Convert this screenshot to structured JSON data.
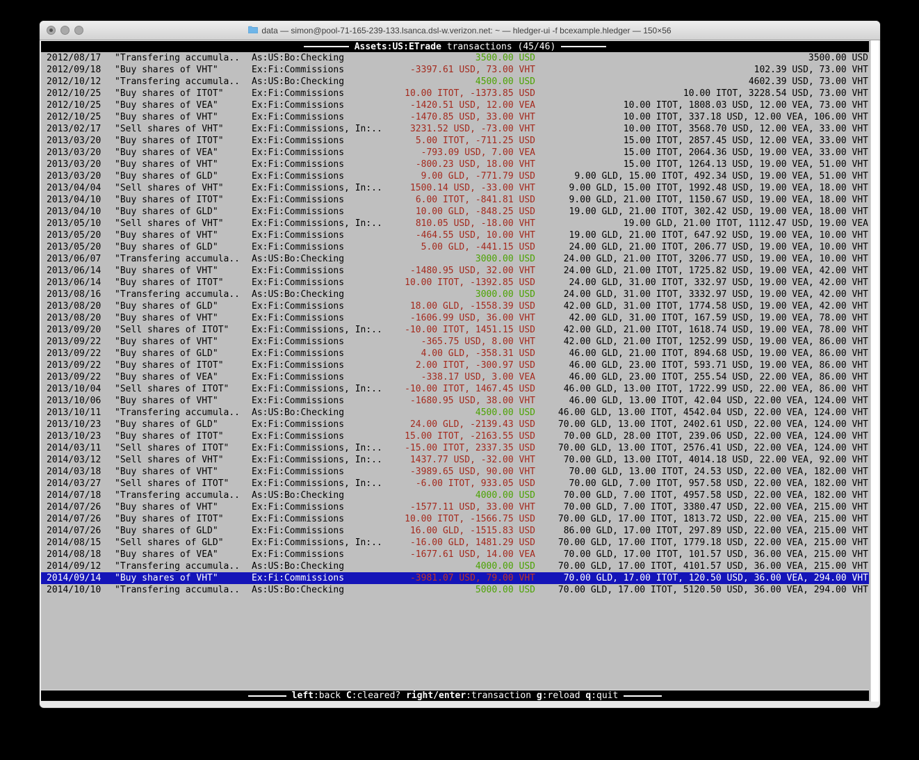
{
  "window": {
    "title": "data — simon@pool-71-165-239-133.lsanca.dsl-w.verizon.net: ~ — hledger-ui -f bcexample.hledger — 150×56"
  },
  "header": {
    "account_bold": "Assets:US:ETrade",
    "rest": " transactions (45/46)"
  },
  "footer": {
    "keys": [
      {
        "key": "left",
        "action": "back"
      },
      {
        "key": "C",
        "action": "cleared?"
      },
      {
        "key": "right/enter",
        "action": "transaction"
      },
      {
        "key": "g",
        "action": "reload"
      },
      {
        "key": "q",
        "action": "quit"
      }
    ]
  },
  "colors": {
    "terminal_bg": "#bfbfbf",
    "bar_bg": "#000000",
    "bar_fg": "#ffffff",
    "amount_negative": "#a42a1e",
    "amount_positive": "#4ca303",
    "selection_bg": "#1414b8",
    "selection_fg": "#ffffff"
  },
  "register": {
    "selected_index": 44,
    "columns": [
      "date",
      "description",
      "other_accounts",
      "change",
      "balance"
    ],
    "rows": [
      [
        "2012/08/17",
        "\"Transfering accumula..",
        "As:US:Bo:Checking",
        "3500.00 USD",
        "green",
        "3500.00 USD"
      ],
      [
        "2012/09/18",
        "\"Buy shares of VHT\"",
        "Ex:Fi:Commissions",
        "-3397.61 USD, 73.00 VHT",
        "red",
        "102.39 USD, 73.00 VHT"
      ],
      [
        "2012/10/12",
        "\"Transfering accumula..",
        "As:US:Bo:Checking",
        "4500.00 USD",
        "green",
        "4602.39 USD, 73.00 VHT"
      ],
      [
        "2012/10/25",
        "\"Buy shares of ITOT\"",
        "Ex:Fi:Commissions",
        "10.00 ITOT, -1373.85 USD",
        "red",
        "10.00 ITOT, 3228.54 USD, 73.00 VHT"
      ],
      [
        "2012/10/25",
        "\"Buy shares of VEA\"",
        "Ex:Fi:Commissions",
        "-1420.51 USD, 12.00 VEA",
        "red",
        "10.00 ITOT, 1808.03 USD, 12.00 VEA, 73.00 VHT"
      ],
      [
        "2012/10/25",
        "\"Buy shares of VHT\"",
        "Ex:Fi:Commissions",
        "-1470.85 USD, 33.00 VHT",
        "red",
        "10.00 ITOT, 337.18 USD, 12.00 VEA, 106.00 VHT"
      ],
      [
        "2013/02/17",
        "\"Sell shares of VHT\"",
        "Ex:Fi:Commissions, In:..",
        "3231.52 USD, -73.00 VHT",
        "red",
        "10.00 ITOT, 3568.70 USD, 12.00 VEA, 33.00 VHT"
      ],
      [
        "2013/03/20",
        "\"Buy shares of ITOT\"",
        "Ex:Fi:Commissions",
        "5.00 ITOT, -711.25 USD",
        "red",
        "15.00 ITOT, 2857.45 USD, 12.00 VEA, 33.00 VHT"
      ],
      [
        "2013/03/20",
        "\"Buy shares of VEA\"",
        "Ex:Fi:Commissions",
        "-793.09 USD, 7.00 VEA",
        "red",
        "15.00 ITOT, 2064.36 USD, 19.00 VEA, 33.00 VHT"
      ],
      [
        "2013/03/20",
        "\"Buy shares of VHT\"",
        "Ex:Fi:Commissions",
        "-800.23 USD, 18.00 VHT",
        "red",
        "15.00 ITOT, 1264.13 USD, 19.00 VEA, 51.00 VHT"
      ],
      [
        "2013/03/20",
        "\"Buy shares of GLD\"",
        "Ex:Fi:Commissions",
        "9.00 GLD, -771.79 USD",
        "red",
        "9.00 GLD, 15.00 ITOT, 492.34 USD, 19.00 VEA, 51.00 VHT"
      ],
      [
        "2013/04/04",
        "\"Sell shares of VHT\"",
        "Ex:Fi:Commissions, In:..",
        "1500.14 USD, -33.00 VHT",
        "red",
        "9.00 GLD, 15.00 ITOT, 1992.48 USD, 19.00 VEA, 18.00 VHT"
      ],
      [
        "2013/04/10",
        "\"Buy shares of ITOT\"",
        "Ex:Fi:Commissions",
        "6.00 ITOT, -841.81 USD",
        "red",
        "9.00 GLD, 21.00 ITOT, 1150.67 USD, 19.00 VEA, 18.00 VHT"
      ],
      [
        "2013/04/10",
        "\"Buy shares of GLD\"",
        "Ex:Fi:Commissions",
        "10.00 GLD, -848.25 USD",
        "red",
        "19.00 GLD, 21.00 ITOT, 302.42 USD, 19.00 VEA, 18.00 VHT"
      ],
      [
        "2013/05/10",
        "\"Sell shares of VHT\"",
        "Ex:Fi:Commissions, In:..",
        "810.05 USD, -18.00 VHT",
        "red",
        "19.00 GLD, 21.00 ITOT, 1112.47 USD, 19.00 VEA"
      ],
      [
        "2013/05/20",
        "\"Buy shares of VHT\"",
        "Ex:Fi:Commissions",
        "-464.55 USD, 10.00 VHT",
        "red",
        "19.00 GLD, 21.00 ITOT, 647.92 USD, 19.00 VEA, 10.00 VHT"
      ],
      [
        "2013/05/20",
        "\"Buy shares of GLD\"",
        "Ex:Fi:Commissions",
        "5.00 GLD, -441.15 USD",
        "red",
        "24.00 GLD, 21.00 ITOT, 206.77 USD, 19.00 VEA, 10.00 VHT"
      ],
      [
        "2013/06/07",
        "\"Transfering accumula..",
        "As:US:Bo:Checking",
        "3000.00 USD",
        "green",
        "24.00 GLD, 21.00 ITOT, 3206.77 USD, 19.00 VEA, 10.00 VHT"
      ],
      [
        "2013/06/14",
        "\"Buy shares of VHT\"",
        "Ex:Fi:Commissions",
        "-1480.95 USD, 32.00 VHT",
        "red",
        "24.00 GLD, 21.00 ITOT, 1725.82 USD, 19.00 VEA, 42.00 VHT"
      ],
      [
        "2013/06/14",
        "\"Buy shares of ITOT\"",
        "Ex:Fi:Commissions",
        "10.00 ITOT, -1392.85 USD",
        "red",
        "24.00 GLD, 31.00 ITOT, 332.97 USD, 19.00 VEA, 42.00 VHT"
      ],
      [
        "2013/08/16",
        "\"Transfering accumula..",
        "As:US:Bo:Checking",
        "3000.00 USD",
        "green",
        "24.00 GLD, 31.00 ITOT, 3332.97 USD, 19.00 VEA, 42.00 VHT"
      ],
      [
        "2013/08/20",
        "\"Buy shares of GLD\"",
        "Ex:Fi:Commissions",
        "18.00 GLD, -1558.39 USD",
        "red",
        "42.00 GLD, 31.00 ITOT, 1774.58 USD, 19.00 VEA, 42.00 VHT"
      ],
      [
        "2013/08/20",
        "\"Buy shares of VHT\"",
        "Ex:Fi:Commissions",
        "-1606.99 USD, 36.00 VHT",
        "red",
        "42.00 GLD, 31.00 ITOT, 167.59 USD, 19.00 VEA, 78.00 VHT"
      ],
      [
        "2013/09/20",
        "\"Sell shares of ITOT\"",
        "Ex:Fi:Commissions, In:..",
        "-10.00 ITOT, 1451.15 USD",
        "red",
        "42.00 GLD, 21.00 ITOT, 1618.74 USD, 19.00 VEA, 78.00 VHT"
      ],
      [
        "2013/09/22",
        "\"Buy shares of VHT\"",
        "Ex:Fi:Commissions",
        "-365.75 USD, 8.00 VHT",
        "red",
        "42.00 GLD, 21.00 ITOT, 1252.99 USD, 19.00 VEA, 86.00 VHT"
      ],
      [
        "2013/09/22",
        "\"Buy shares of GLD\"",
        "Ex:Fi:Commissions",
        "4.00 GLD, -358.31 USD",
        "red",
        "46.00 GLD, 21.00 ITOT, 894.68 USD, 19.00 VEA, 86.00 VHT"
      ],
      [
        "2013/09/22",
        "\"Buy shares of ITOT\"",
        "Ex:Fi:Commissions",
        "2.00 ITOT, -300.97 USD",
        "red",
        "46.00 GLD, 23.00 ITOT, 593.71 USD, 19.00 VEA, 86.00 VHT"
      ],
      [
        "2013/09/22",
        "\"Buy shares of VEA\"",
        "Ex:Fi:Commissions",
        "-338.17 USD, 3.00 VEA",
        "red",
        "46.00 GLD, 23.00 ITOT, 255.54 USD, 22.00 VEA, 86.00 VHT"
      ],
      [
        "2013/10/04",
        "\"Sell shares of ITOT\"",
        "Ex:Fi:Commissions, In:..",
        "-10.00 ITOT, 1467.45 USD",
        "red",
        "46.00 GLD, 13.00 ITOT, 1722.99 USD, 22.00 VEA, 86.00 VHT"
      ],
      [
        "2013/10/06",
        "\"Buy shares of VHT\"",
        "Ex:Fi:Commissions",
        "-1680.95 USD, 38.00 VHT",
        "red",
        "46.00 GLD, 13.00 ITOT, 42.04 USD, 22.00 VEA, 124.00 VHT"
      ],
      [
        "2013/10/11",
        "\"Transfering accumula..",
        "As:US:Bo:Checking",
        "4500.00 USD",
        "green",
        "46.00 GLD, 13.00 ITOT, 4542.04 USD, 22.00 VEA, 124.00 VHT"
      ],
      [
        "2013/10/23",
        "\"Buy shares of GLD\"",
        "Ex:Fi:Commissions",
        "24.00 GLD, -2139.43 USD",
        "red",
        "70.00 GLD, 13.00 ITOT, 2402.61 USD, 22.00 VEA, 124.00 VHT"
      ],
      [
        "2013/10/23",
        "\"Buy shares of ITOT\"",
        "Ex:Fi:Commissions",
        "15.00 ITOT, -2163.55 USD",
        "red",
        "70.00 GLD, 28.00 ITOT, 239.06 USD, 22.00 VEA, 124.00 VHT"
      ],
      [
        "2014/03/11",
        "\"Sell shares of ITOT\"",
        "Ex:Fi:Commissions, In:..",
        "-15.00 ITOT, 2337.35 USD",
        "red",
        "70.00 GLD, 13.00 ITOT, 2576.41 USD, 22.00 VEA, 124.00 VHT"
      ],
      [
        "2014/03/12",
        "\"Sell shares of VHT\"",
        "Ex:Fi:Commissions, In:..",
        "1437.77 USD, -32.00 VHT",
        "red",
        "70.00 GLD, 13.00 ITOT, 4014.18 USD, 22.00 VEA, 92.00 VHT"
      ],
      [
        "2014/03/18",
        "\"Buy shares of VHT\"",
        "Ex:Fi:Commissions",
        "-3989.65 USD, 90.00 VHT",
        "red",
        "70.00 GLD, 13.00 ITOT, 24.53 USD, 22.00 VEA, 182.00 VHT"
      ],
      [
        "2014/03/27",
        "\"Sell shares of ITOT\"",
        "Ex:Fi:Commissions, In:..",
        "-6.00 ITOT, 933.05 USD",
        "red",
        "70.00 GLD, 7.00 ITOT, 957.58 USD, 22.00 VEA, 182.00 VHT"
      ],
      [
        "2014/07/18",
        "\"Transfering accumula..",
        "As:US:Bo:Checking",
        "4000.00 USD",
        "green",
        "70.00 GLD, 7.00 ITOT, 4957.58 USD, 22.00 VEA, 182.00 VHT"
      ],
      [
        "2014/07/26",
        "\"Buy shares of VHT\"",
        "Ex:Fi:Commissions",
        "-1577.11 USD, 33.00 VHT",
        "red",
        "70.00 GLD, 7.00 ITOT, 3380.47 USD, 22.00 VEA, 215.00 VHT"
      ],
      [
        "2014/07/26",
        "\"Buy shares of ITOT\"",
        "Ex:Fi:Commissions",
        "10.00 ITOT, -1566.75 USD",
        "red",
        "70.00 GLD, 17.00 ITOT, 1813.72 USD, 22.00 VEA, 215.00 VHT"
      ],
      [
        "2014/07/26",
        "\"Buy shares of GLD\"",
        "Ex:Fi:Commissions",
        "16.00 GLD, -1515.83 USD",
        "red",
        "86.00 GLD, 17.00 ITOT, 297.89 USD, 22.00 VEA, 215.00 VHT"
      ],
      [
        "2014/08/15",
        "\"Sell shares of GLD\"",
        "Ex:Fi:Commissions, In:..",
        "-16.00 GLD, 1481.29 USD",
        "red",
        "70.00 GLD, 17.00 ITOT, 1779.18 USD, 22.00 VEA, 215.00 VHT"
      ],
      [
        "2014/08/18",
        "\"Buy shares of VEA\"",
        "Ex:Fi:Commissions",
        "-1677.61 USD, 14.00 VEA",
        "red",
        "70.00 GLD, 17.00 ITOT, 101.57 USD, 36.00 VEA, 215.00 VHT"
      ],
      [
        "2014/09/12",
        "\"Transfering accumula..",
        "As:US:Bo:Checking",
        "4000.00 USD",
        "green",
        "70.00 GLD, 17.00 ITOT, 4101.57 USD, 36.00 VEA, 215.00 VHT"
      ],
      [
        "2014/09/14",
        "\"Buy shares of VHT\"",
        "Ex:Fi:Commissions",
        "-3981.07 USD, 79.00 VHT",
        "red",
        "70.00 GLD, 17.00 ITOT, 120.50 USD, 36.00 VEA, 294.00 VHT"
      ],
      [
        "2014/10/10",
        "\"Transfering accumula..",
        "As:US:Bo:Checking",
        "5000.00 USD",
        "green",
        "70.00 GLD, 17.00 ITOT, 5120.50 USD, 36.00 VEA, 294.00 VHT"
      ]
    ]
  }
}
